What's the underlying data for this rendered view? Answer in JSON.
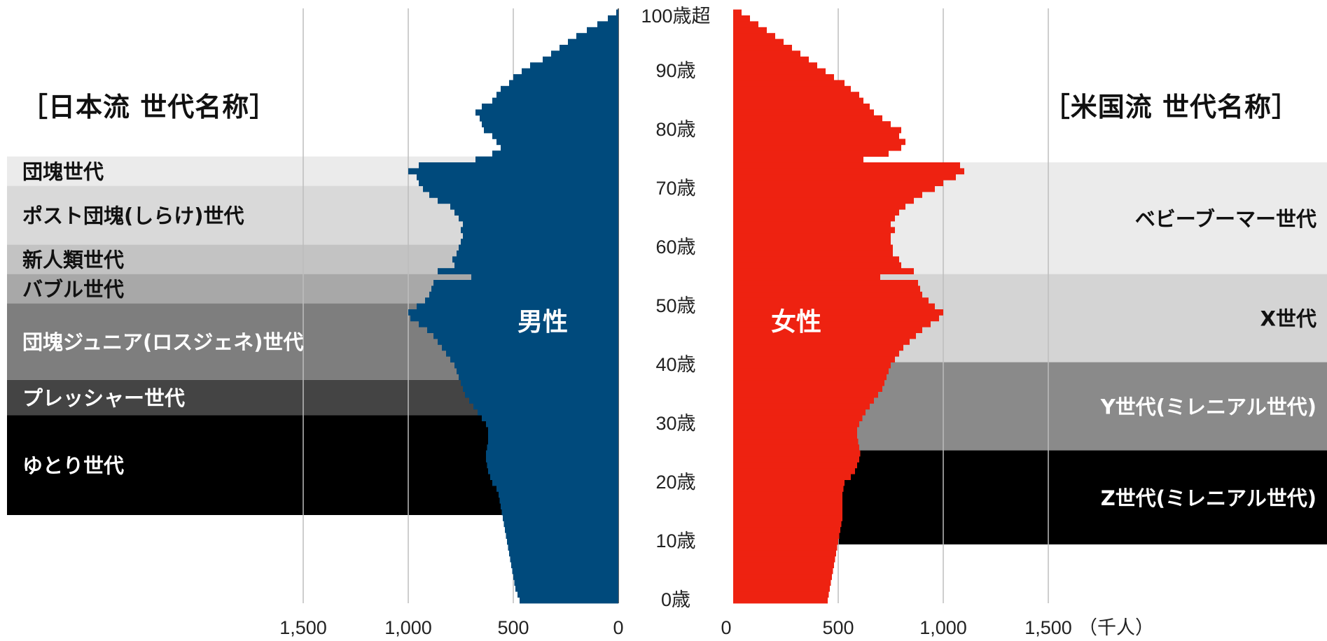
{
  "labels": {
    "japan_header": "［日本流 世代名称］",
    "us_header": "［米国流 世代名称］",
    "male": "男性",
    "female": "女性",
    "unit": "（千人）"
  },
  "colors": {
    "male": "#004a7c",
    "female": "#ee2211",
    "grid": "#bdbdbd"
  },
  "chart_data": {
    "type": "bar",
    "orientation": "population-pyramid",
    "xlabel": "（千人）",
    "xlim": [
      0,
      1500
    ],
    "x_ticks_left": [
      "1,500",
      "1,000",
      "500",
      "0"
    ],
    "x_ticks_right": [
      "0",
      "500",
      "1,000",
      "1,500"
    ],
    "x_tick_values": [
      0,
      500,
      1000,
      1500
    ],
    "age_labels": [
      "100歳超",
      "90歳",
      "80歳",
      "70歳",
      "60歳",
      "50歳",
      "40歳",
      "30歳",
      "20歳",
      "10歳",
      "0歳"
    ],
    "age_label_values": [
      100,
      90,
      80,
      70,
      60,
      50,
      40,
      30,
      20,
      10,
      0
    ],
    "ages": [
      0,
      1,
      2,
      3,
      4,
      5,
      6,
      7,
      8,
      9,
      10,
      11,
      12,
      13,
      14,
      15,
      16,
      17,
      18,
      19,
      20,
      21,
      22,
      23,
      24,
      25,
      26,
      27,
      28,
      29,
      30,
      31,
      32,
      33,
      34,
      35,
      36,
      37,
      38,
      39,
      40,
      41,
      42,
      43,
      44,
      45,
      46,
      47,
      48,
      49,
      50,
      51,
      52,
      53,
      54,
      55,
      56,
      57,
      58,
      59,
      60,
      61,
      62,
      63,
      64,
      65,
      66,
      67,
      68,
      69,
      70,
      71,
      72,
      73,
      74,
      75,
      76,
      77,
      78,
      79,
      80,
      81,
      82,
      83,
      84,
      85,
      86,
      87,
      88,
      89,
      90,
      91,
      92,
      93,
      94,
      95,
      96,
      97,
      98,
      99,
      100
    ],
    "series": [
      {
        "name": "男性",
        "values": [
          470,
          480,
          490,
          495,
          500,
          505,
          510,
          515,
          520,
          525,
          530,
          535,
          540,
          545,
          550,
          555,
          560,
          565,
          570,
          580,
          600,
          610,
          620,
          625,
          630,
          630,
          625,
          620,
          620,
          620,
          630,
          650,
          670,
          690,
          710,
          730,
          740,
          750,
          760,
          770,
          780,
          800,
          820,
          840,
          860,
          880,
          910,
          950,
          990,
          1000,
          960,
          920,
          900,
          890,
          880,
          700,
          860,
          780,
          790,
          770,
          760,
          750,
          740,
          750,
          740,
          760,
          780,
          800,
          860,
          900,
          930,
          950,
          960,
          1000,
          950,
          680,
          600,
          560,
          580,
          600,
          640,
          650,
          660,
          680,
          650,
          600,
          580,
          560,
          520,
          500,
          460,
          420,
          360,
          320,
          280,
          240,
          200,
          150,
          100,
          50,
          10
        ]
      },
      {
        "name": "女性",
        "values": [
          450,
          455,
          460,
          465,
          470,
          475,
          480,
          485,
          490,
          495,
          500,
          505,
          510,
          515,
          520,
          520,
          520,
          520,
          520,
          525,
          530,
          560,
          580,
          590,
          600,
          605,
          600,
          595,
          590,
          590,
          600,
          615,
          630,
          650,
          670,
          690,
          710,
          720,
          730,
          740,
          750,
          770,
          790,
          810,
          840,
          870,
          900,
          940,
          980,
          1000,
          960,
          930,
          900,
          890,
          880,
          700,
          860,
          800,
          790,
          760,
          760,
          750,
          750,
          770,
          750,
          770,
          790,
          820,
          860,
          900,
          960,
          1000,
          1060,
          1100,
          1080,
          620,
          740,
          800,
          820,
          790,
          800,
          750,
          710,
          670,
          650,
          620,
          600,
          560,
          530,
          480,
          440,
          400,
          360,
          320,
          280,
          240,
          200,
          160,
          120,
          80,
          40
        ]
      }
    ],
    "japan_generations": [
      {
        "label": "団塊世代",
        "ages": [
          71,
          75
        ]
      },
      {
        "label": "ポスト団塊(しらけ)世代",
        "ages": [
          61,
          70
        ]
      },
      {
        "label": "新人類世代",
        "ages": [
          56,
          60
        ]
      },
      {
        "label": "バブル世代",
        "ages": [
          51,
          55
        ]
      },
      {
        "label": "団塊ジュニア(ロスジェネ)世代",
        "ages": [
          38,
          50
        ]
      },
      {
        "label": "プレッシャー世代",
        "ages": [
          32,
          37
        ]
      },
      {
        "label": "ゆとり世代",
        "ages": [
          15,
          31
        ]
      }
    ],
    "us_generations": [
      {
        "label": "ベビーブーマー世代",
        "ages": [
          56,
          74
        ]
      },
      {
        "label": "X世代",
        "ages": [
          41,
          55
        ]
      },
      {
        "label": "Y世代(ミレニアル世代)",
        "ages": [
          26,
          40
        ]
      },
      {
        "label": "Z世代(ミレニアル世代)",
        "ages": [
          10,
          25
        ]
      }
    ]
  }
}
